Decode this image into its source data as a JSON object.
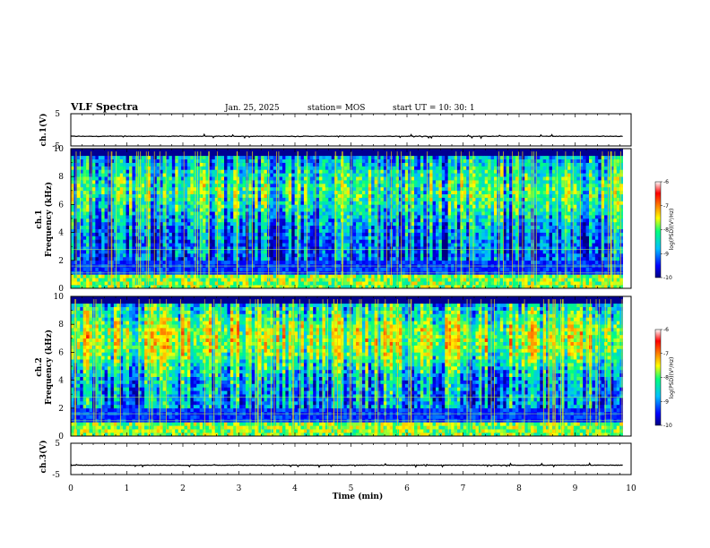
{
  "header": {
    "title": "VLF Spectra",
    "date": "Jan. 25, 2025",
    "station": "station= MOS",
    "start_ut": "start  UT  =   10: 30: 1"
  },
  "chart_data": [
    {
      "type": "line",
      "panel": "ch1-waveform",
      "ylabel": "ch.1(V)",
      "ylim": [
        -5,
        5
      ],
      "y_ticks": [
        "5",
        "-5"
      ],
      "baseline": -2,
      "xlim": [
        0,
        10
      ]
    },
    {
      "type": "heatmap",
      "panel": "ch1-spectrogram",
      "ylabel_channel": "ch.1",
      "ylabel": "Frequency (kHz)",
      "ylim": [
        0,
        10
      ],
      "y_ticks": [
        "0",
        "2",
        "4",
        "6",
        "8",
        "10"
      ],
      "xlim": [
        0,
        9.85
      ],
      "colorbar": {
        "label": "log(PSD)(V²/Hz)",
        "range": [
          -10,
          -6
        ],
        "ticks": [
          "-6",
          "-7",
          "-8",
          "-9",
          "-10"
        ],
        "colors": [
          "#000080",
          "#0000ff",
          "#00bfff",
          "#00ff7f",
          "#ffff00",
          "#ff8000",
          "#ff0000",
          "#ffffff"
        ]
      }
    },
    {
      "type": "heatmap",
      "panel": "ch2-spectrogram",
      "ylabel_channel": "ch.2",
      "ylabel": "Frequency (kHz)",
      "ylim": [
        0,
        10
      ],
      "y_ticks": [
        "0",
        "2",
        "4",
        "6",
        "8",
        "10"
      ],
      "xlim": [
        0,
        9.85
      ],
      "colorbar": {
        "label": "log(PSD)(V²/Hz)",
        "range": [
          -10,
          -6
        ],
        "ticks": [
          "-6",
          "-7",
          "-8",
          "-9",
          "-10"
        ],
        "colors": [
          "#000080",
          "#0000ff",
          "#00bfff",
          "#00ff7f",
          "#ffff00",
          "#ff8000",
          "#ff0000",
          "#ffffff"
        ]
      }
    },
    {
      "type": "line",
      "panel": "ch3-waveform",
      "ylabel": "ch.3(V)",
      "ylim": [
        -5,
        5
      ],
      "y_ticks": [
        "5",
        "-5"
      ],
      "baseline": -2,
      "xlim": [
        0,
        10
      ]
    }
  ],
  "x_axis": {
    "label": "Time  (min)",
    "range": [
      0,
      10
    ],
    "ticks": [
      "0",
      "1",
      "2",
      "3",
      "4",
      "5",
      "6",
      "7",
      "8",
      "9",
      "10"
    ]
  }
}
